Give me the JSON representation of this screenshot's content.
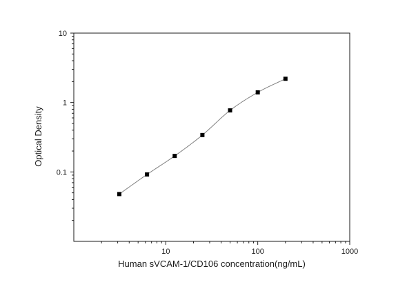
{
  "chart_data": {
    "type": "scatter",
    "xlabel": "Human sVCAM-1/CD106 concentration(ng/mL)",
    "ylabel": "Optical Density",
    "xscale": "log",
    "yscale": "log",
    "xlim": [
      1,
      1000
    ],
    "ylim": [
      0.01,
      10
    ],
    "x_ticks": [
      {
        "value": 10,
        "label": "10"
      },
      {
        "value": 100,
        "label": "100"
      },
      {
        "value": 1000,
        "label": "1000"
      }
    ],
    "y_ticks": [
      {
        "value": 0.1,
        "label": "0.1"
      },
      {
        "value": 1,
        "label": "1"
      },
      {
        "value": 10,
        "label": "10"
      }
    ],
    "grid": false,
    "series": [
      {
        "marker": "square",
        "color": "#000000",
        "x": [
          3.125,
          6.25,
          12.5,
          25,
          50,
          100,
          200
        ],
        "y": [
          0.048,
          0.092,
          0.17,
          0.34,
          0.77,
          1.4,
          2.2
        ]
      }
    ],
    "fit_curve": {
      "color": "#808080",
      "x": [
        3.125,
        200
      ]
    }
  }
}
